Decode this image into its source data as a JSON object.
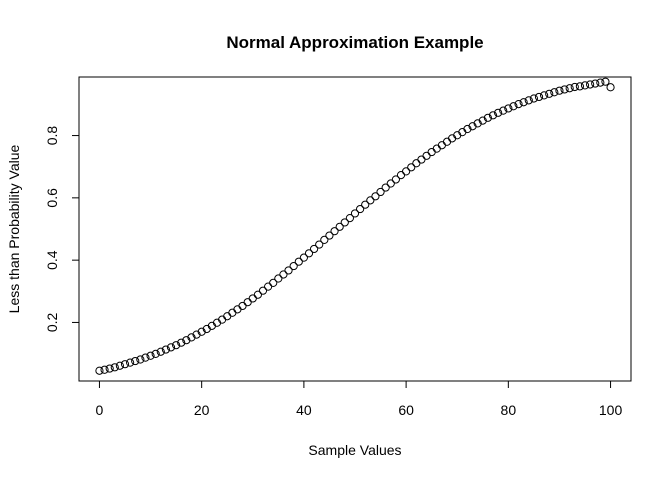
{
  "chart_data": {
    "type": "scatter",
    "title": "Normal Approximation Example",
    "xlabel": "Sample Values",
    "ylabel": "Less than Probability Value",
    "xlim": [
      -4,
      104
    ],
    "ylim": [
      0.012,
      0.988
    ],
    "xticks": [
      {
        "value": 0,
        "label": "0"
      },
      {
        "value": 20,
        "label": "20"
      },
      {
        "value": 40,
        "label": "40"
      },
      {
        "value": 60,
        "label": "60"
      },
      {
        "value": 80,
        "label": "80"
      },
      {
        "value": 100,
        "label": "100"
      }
    ],
    "yticks": [
      {
        "value": 0.2,
        "label": "0.2"
      },
      {
        "value": 0.4,
        "label": "0.4"
      },
      {
        "value": 0.6,
        "label": "0.6"
      },
      {
        "value": 0.8,
        "label": "0.8"
      }
    ],
    "grid": false,
    "marker": "open-circle",
    "marker_color": "#000000",
    "series": [
      {
        "x": [
          0,
          1,
          2,
          3,
          4,
          5,
          6,
          7,
          8,
          9,
          10,
          11,
          12,
          13,
          14,
          15,
          16,
          17,
          18,
          19,
          20,
          21,
          22,
          23,
          24,
          25,
          26,
          27,
          28,
          29,
          30,
          31,
          32,
          33,
          34,
          35,
          36,
          37,
          38,
          39,
          40,
          41,
          42,
          43,
          44,
          45,
          46,
          47,
          48,
          49,
          50,
          51,
          52,
          53,
          54,
          55,
          56,
          57,
          58,
          59,
          60,
          61,
          62,
          63,
          64,
          65,
          66,
          67,
          68,
          69,
          70,
          71,
          72,
          73,
          74,
          75,
          76,
          77,
          78,
          79,
          80,
          81,
          82,
          83,
          84,
          85,
          86,
          87,
          88,
          89,
          90,
          91,
          92,
          93,
          94,
          95,
          96,
          97,
          98,
          99,
          100
        ],
        "y": [
          0.045,
          0.048,
          0.052,
          0.056,
          0.061,
          0.066,
          0.071,
          0.076,
          0.081,
          0.087,
          0.093,
          0.099,
          0.106,
          0.113,
          0.12,
          0.127,
          0.135,
          0.143,
          0.152,
          0.161,
          0.17,
          0.179,
          0.189,
          0.199,
          0.209,
          0.22,
          0.231,
          0.242,
          0.253,
          0.265,
          0.277,
          0.289,
          0.302,
          0.315,
          0.327,
          0.341,
          0.354,
          0.367,
          0.381,
          0.395,
          0.408,
          0.422,
          0.436,
          0.45,
          0.465,
          0.479,
          0.493,
          0.507,
          0.521,
          0.535,
          0.55,
          0.564,
          0.578,
          0.592,
          0.605,
          0.619,
          0.633,
          0.646,
          0.659,
          0.673,
          0.685,
          0.698,
          0.711,
          0.723,
          0.735,
          0.747,
          0.758,
          0.769,
          0.78,
          0.791,
          0.801,
          0.811,
          0.821,
          0.83,
          0.839,
          0.848,
          0.857,
          0.865,
          0.873,
          0.88,
          0.887,
          0.894,
          0.901,
          0.907,
          0.913,
          0.919,
          0.924,
          0.929,
          0.934,
          0.939,
          0.944,
          0.948,
          0.952,
          0.956,
          0.958,
          0.961,
          0.964,
          0.967,
          0.97,
          0.973,
          0.955
        ]
      }
    ]
  }
}
